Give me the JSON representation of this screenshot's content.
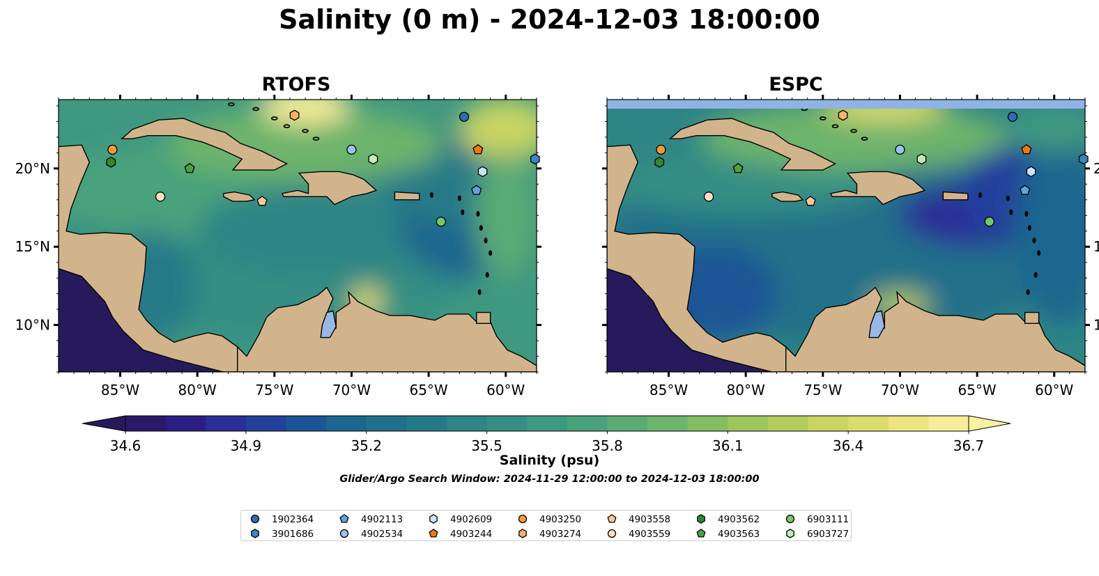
{
  "title": "Salinity (0 m) - 2024-12-03 18:00:00",
  "panels": [
    {
      "id": "rtofs",
      "title": "RTOFS",
      "ylabels_side": "left",
      "top_band": false
    },
    {
      "id": "espc",
      "title": "ESPC",
      "ylabels_side": "right",
      "top_band": true
    }
  ],
  "map": {
    "lon_range": [
      -89,
      -58
    ],
    "lat_range": [
      7,
      24.4
    ],
    "lon_ticks": [
      "85°W",
      "80°W",
      "75°W",
      "70°W",
      "65°W",
      "60°W"
    ],
    "lon_tick_values": [
      -85,
      -80,
      -75,
      -70,
      -65,
      -60
    ],
    "lat_ticks": [
      "20°N",
      "15°N",
      "10°N"
    ],
    "lat_tick_values": [
      20,
      15,
      10
    ],
    "land_color": "#d2b48c",
    "deep_color": "#271a5c",
    "lake_color": "#9ab8e6"
  },
  "colorbar": {
    "label": "Salinity (psu)",
    "ticks": [
      "34.6",
      "34.9",
      "35.2",
      "35.5",
      "35.8",
      "36.1",
      "36.4",
      "36.7"
    ],
    "range": [
      34.6,
      36.7
    ],
    "colors": [
      "#29196a",
      "#2c1d85",
      "#2a2f98",
      "#21419b",
      "#1b5596",
      "#1c668f",
      "#216f8a",
      "#267a87",
      "#2e8585",
      "#368e83",
      "#3f9880",
      "#4aa27c",
      "#5aab75",
      "#6db46c",
      "#84bd63",
      "#9cc55c",
      "#b3cc5c",
      "#c8d463",
      "#dbdc6e",
      "#ece582",
      "#f7ed99"
    ]
  },
  "search_window": "Glider/Argo Search Window: 2024-11-29 12:00:00 to 2024-12-03 18:00:00",
  "floats": [
    {
      "id": "1902364",
      "marker": "circle",
      "color": "#2a6fb0",
      "lon": -62.7,
      "lat": 23.3
    },
    {
      "id": "3901686",
      "marker": "hexagon",
      "color": "#3c84c4",
      "lon": -58.1,
      "lat": 20.6
    },
    {
      "id": "4902113",
      "marker": "pentagon",
      "color": "#62a4dc",
      "lon": -61.9,
      "lat": 18.6
    },
    {
      "id": "4902534",
      "marker": "circle",
      "color": "#9ac4ee",
      "lon": -70.0,
      "lat": 21.2
    },
    {
      "id": "4902609",
      "marker": "hexagon",
      "color": "#c9e3f8",
      "lon": -61.5,
      "lat": 19.8
    },
    {
      "id": "4903244",
      "marker": "pentagon",
      "color": "#f0780f",
      "lon": -61.8,
      "lat": 21.2
    },
    {
      "id": "4903250",
      "marker": "circle",
      "color": "#f39a3c",
      "lon": -85.5,
      "lat": 21.2
    },
    {
      "id": "4903274",
      "marker": "hexagon",
      "color": "#f7b26c",
      "lon": -73.7,
      "lat": 23.4
    },
    {
      "id": "4903558",
      "marker": "pentagon",
      "color": "#f9c99c",
      "lon": -75.8,
      "lat": 17.9
    },
    {
      "id": "4903559",
      "marker": "circle",
      "color": "#fde0c8",
      "lon": -82.4,
      "lat": 18.2
    },
    {
      "id": "4903562",
      "marker": "hexagon",
      "color": "#2f8a2a",
      "lon": -85.6,
      "lat": 20.4
    },
    {
      "id": "4903563",
      "marker": "pentagon",
      "color": "#4ba340",
      "lon": -80.5,
      "lat": 20.0
    },
    {
      "id": "6903111",
      "marker": "circle",
      "color": "#74c866",
      "lon": -64.2,
      "lat": 16.6
    },
    {
      "id": "6903727",
      "marker": "hexagon",
      "color": "#c3ebb8",
      "lon": -68.6,
      "lat": 20.6
    }
  ]
}
